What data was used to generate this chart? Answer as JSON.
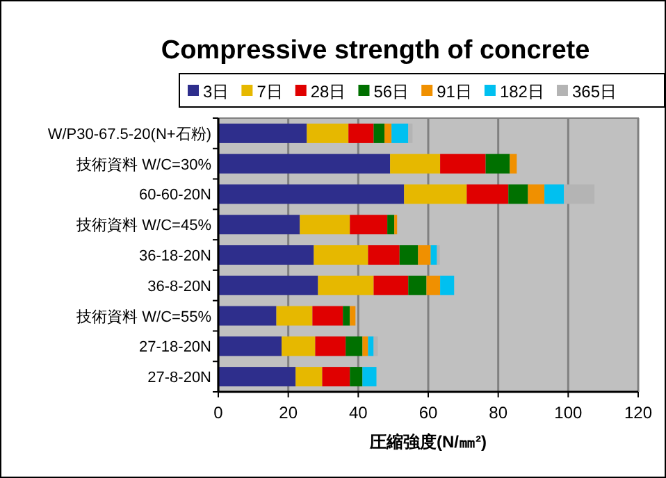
{
  "chart_data": {
    "type": "bar",
    "orientation": "horizontal",
    "stacked": true,
    "title": "Compressive strength of concrete",
    "xlabel": "圧縮強度(N/㎜²)",
    "categories": [
      "W/P30-67.5-20(N+石粉)",
      "技術資料 W/C=30%",
      "60-60-20N",
      "技術資料 W/C=45%",
      "36-18-20N",
      "36-8-20N",
      "技術資料 W/C=55%",
      "27-18-20N",
      "27-8-20N"
    ],
    "series": [
      {
        "name": "3日",
        "color": "#2e2e8c",
        "values": [
          25.3,
          49.1,
          53.1,
          23.3,
          27.3,
          28.5,
          16.6,
          18.1,
          22.1
        ]
      },
      {
        "name": "7日",
        "color": "#e6b800",
        "values": [
          11.9,
          14.3,
          17.9,
          14.3,
          15.5,
          15.9,
          10.3,
          9.6,
          7.6
        ]
      },
      {
        "name": "28日",
        "color": "#e00000",
        "values": [
          7.2,
          13.0,
          11.9,
          10.7,
          9.0,
          9.9,
          8.7,
          8.7,
          7.9
        ]
      },
      {
        "name": "56日",
        "color": "#007000",
        "values": [
          3.1,
          6.9,
          5.6,
          2.0,
          5.3,
          5.2,
          2.0,
          4.8,
          3.6
        ]
      },
      {
        "name": "91日",
        "color": "#f09000",
        "values": [
          2.0,
          2.0,
          4.7,
          0.8,
          3.6,
          3.9,
          1.6,
          1.6,
          null
        ]
      },
      {
        "name": "182日",
        "color": "#00c0f0",
        "values": [
          4.8,
          null,
          5.6,
          null,
          1.8,
          4.0,
          null,
          1.6,
          4.0
        ]
      },
      {
        "name": "365日",
        "color": "#b4b4b4",
        "values": [
          1.2,
          null,
          8.7,
          null,
          0.8,
          null,
          null,
          1.2,
          null
        ]
      }
    ],
    "xlim": [
      0,
      120
    ],
    "xticks": [
      0,
      20,
      40,
      60,
      80,
      100,
      120
    ],
    "grid": "x",
    "legend": "top"
  }
}
